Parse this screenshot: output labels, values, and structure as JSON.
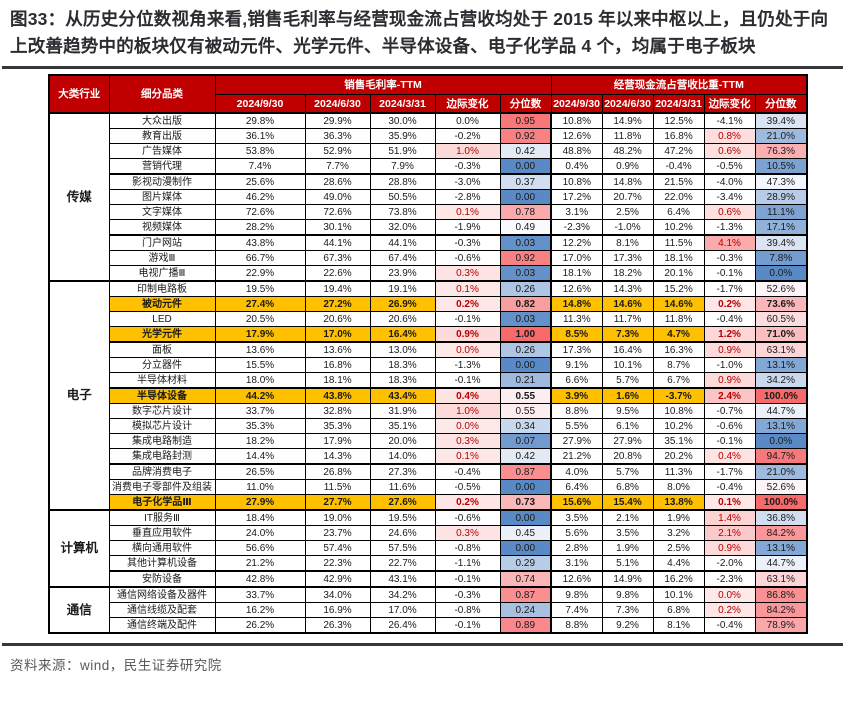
{
  "title": "图33：从历史分位数视角来看,销售毛利率与经营现金流占营收均处于 2015 年以来中枢以上，且仍处于向上改善趋势中的板块仅有被动元件、光学元件、半导体设备、电子化学品 4 个，均属于电子板块",
  "source": "资料来源：wind，民生证券研究院",
  "colors": {
    "header_bg": "#C00000",
    "highlight_bg": "#FFC000",
    "scale_low": "#5A8AC6",
    "scale_mid": "#FCFCFF",
    "scale_high": "#F8696B",
    "change_text": "#b30000",
    "title_text": "#2b2b31",
    "source_text": "#595959"
  },
  "table": {
    "headers": {
      "industry": "大类行业",
      "segment": "细分品类",
      "group1": "销售毛利率-TTM",
      "group2": "经营现金流占营收比重-TTM",
      "dates": [
        "2024/9/30",
        "2024/6/30",
        "2024/3/31"
      ],
      "change": "边际变化",
      "percentile": "分位数"
    },
    "groups": [
      {
        "industry": "传媒",
        "rows": [
          {
            "name": "大众出版",
            "hl": false,
            "sep": false,
            "gm": [
              "29.8%",
              "29.9%",
              "30.0%"
            ],
            "gm_chg": "0.0%",
            "gm_p": 0,
            "gm_pct": "0.95",
            "cf": [
              "10.8%",
              "14.9%",
              "12.5%"
            ],
            "cf_chg": "-4.1%",
            "cf_p": 0,
            "cf_pct": "39.4%"
          },
          {
            "name": "教育出版",
            "hl": false,
            "sep": false,
            "gm": [
              "36.1%",
              "36.3%",
              "35.9%"
            ],
            "gm_chg": "-0.2%",
            "gm_p": 0,
            "gm_pct": "0.92",
            "cf": [
              "12.6%",
              "11.8%",
              "16.8%"
            ],
            "cf_chg": "0.8%",
            "cf_p": 1,
            "cf_pct": "21.0%"
          },
          {
            "name": "广告媒体",
            "hl": false,
            "sep": false,
            "gm": [
              "53.8%",
              "52.9%",
              "51.9%"
            ],
            "gm_chg": "1.0%",
            "gm_p": 1,
            "gm_pct": "0.42",
            "cf": [
              "48.8%",
              "48.2%",
              "47.2%"
            ],
            "cf_chg": "0.6%",
            "cf_p": 1,
            "cf_pct": "76.3%"
          },
          {
            "name": "营销代理",
            "hl": false,
            "sep": false,
            "gm": [
              "7.4%",
              "7.7%",
              "7.9%"
            ],
            "gm_chg": "-0.3%",
            "gm_p": 0,
            "gm_pct": "0.00",
            "cf": [
              "0.4%",
              "0.9%",
              "-0.4%"
            ],
            "cf_chg": "-0.5%",
            "cf_p": 0,
            "cf_pct": "10.5%"
          },
          {
            "name": "影视动漫制作",
            "hl": false,
            "sep": true,
            "gm": [
              "25.6%",
              "28.6%",
              "28.8%"
            ],
            "gm_chg": "-3.0%",
            "gm_p": 0,
            "gm_pct": "0.37",
            "cf": [
              "10.8%",
              "14.8%",
              "21.5%"
            ],
            "cf_chg": "-4.0%",
            "cf_p": 0,
            "cf_pct": "47.3%"
          },
          {
            "name": "图片媒体",
            "hl": false,
            "sep": false,
            "gm": [
              "46.2%",
              "49.0%",
              "50.5%"
            ],
            "gm_chg": "-2.8%",
            "gm_p": 0,
            "gm_pct": "0.00",
            "cf": [
              "17.2%",
              "20.7%",
              "22.0%"
            ],
            "cf_chg": "-3.4%",
            "cf_p": 0,
            "cf_pct": "28.9%"
          },
          {
            "name": "文字媒体",
            "hl": false,
            "sep": false,
            "gm": [
              "72.6%",
              "72.6%",
              "73.8%"
            ],
            "gm_chg": "0.1%",
            "gm_p": 1,
            "gm_pct": "0.78",
            "cf": [
              "3.1%",
              "2.5%",
              "6.4%"
            ],
            "cf_chg": "0.6%",
            "cf_p": 1,
            "cf_pct": "11.1%"
          },
          {
            "name": "视频媒体",
            "hl": false,
            "sep": false,
            "gm": [
              "28.2%",
              "30.1%",
              "32.0%"
            ],
            "gm_chg": "-1.9%",
            "gm_p": 0,
            "gm_pct": "0.49",
            "cf": [
              "-2.3%",
              "-1.0%",
              "10.2%"
            ],
            "cf_chg": "-1.3%",
            "cf_p": 0,
            "cf_pct": "17.1%"
          },
          {
            "name": "门户网站",
            "hl": false,
            "sep": true,
            "gm": [
              "43.8%",
              "44.1%",
              "44.1%"
            ],
            "gm_chg": "-0.3%",
            "gm_p": 0,
            "gm_pct": "0.03",
            "cf": [
              "12.2%",
              "8.1%",
              "11.5%"
            ],
            "cf_chg": "4.1%",
            "cf_p": 1,
            "cf_pct": "39.4%"
          },
          {
            "name": "游戏Ⅲ",
            "hl": false,
            "sep": false,
            "gm": [
              "66.7%",
              "67.3%",
              "67.4%"
            ],
            "gm_chg": "-0.6%",
            "gm_p": 0,
            "gm_pct": "0.92",
            "cf": [
              "17.0%",
              "17.3%",
              "18.1%"
            ],
            "cf_chg": "-0.3%",
            "cf_p": 0,
            "cf_pct": "7.8%"
          },
          {
            "name": "电视广播Ⅲ",
            "hl": false,
            "sep": false,
            "gm": [
              "22.9%",
              "22.6%",
              "23.9%"
            ],
            "gm_chg": "0.3%",
            "gm_p": 1,
            "gm_pct": "0.03",
            "cf": [
              "18.1%",
              "18.2%",
              "20.1%"
            ],
            "cf_chg": "-0.1%",
            "cf_p": 0,
            "cf_pct": "0.0%"
          }
        ]
      },
      {
        "industry": "电子",
        "rows": [
          {
            "name": "印制电路板",
            "hl": false,
            "sep": false,
            "gm": [
              "19.5%",
              "19.4%",
              "19.1%"
            ],
            "gm_chg": "0.1%",
            "gm_p": 1,
            "gm_pct": "0.26",
            "cf": [
              "12.6%",
              "14.3%",
              "15.2%"
            ],
            "cf_chg": "-1.7%",
            "cf_p": 0,
            "cf_pct": "52.6%"
          },
          {
            "name": "被动元件",
            "hl": true,
            "sep": false,
            "gm": [
              "27.4%",
              "27.2%",
              "26.9%"
            ],
            "gm_chg": "0.2%",
            "gm_p": 1,
            "gm_pct": "0.82",
            "cf": [
              "14.8%",
              "14.6%",
              "14.6%"
            ],
            "cf_chg": "0.2%",
            "cf_p": 1,
            "cf_pct": "73.6%"
          },
          {
            "name": "LED",
            "hl": false,
            "sep": false,
            "gm": [
              "20.5%",
              "20.6%",
              "20.6%"
            ],
            "gm_chg": "-0.1%",
            "gm_p": 0,
            "gm_pct": "0.03",
            "cf": [
              "11.3%",
              "11.7%",
              "11.8%"
            ],
            "cf_chg": "-0.4%",
            "cf_p": 0,
            "cf_pct": "60.5%"
          },
          {
            "name": "光学元件",
            "hl": true,
            "sep": false,
            "gm": [
              "17.9%",
              "17.0%",
              "16.4%"
            ],
            "gm_chg": "0.9%",
            "gm_p": 1,
            "gm_pct": "1.00",
            "cf": [
              "8.5%",
              "7.3%",
              "4.7%"
            ],
            "cf_chg": "1.2%",
            "cf_p": 1,
            "cf_pct": "71.0%"
          },
          {
            "name": "面板",
            "hl": false,
            "sep": true,
            "gm": [
              "13.6%",
              "13.6%",
              "13.0%"
            ],
            "gm_chg": "0.0%",
            "gm_p": 1,
            "gm_pct": "0.26",
            "cf": [
              "17.3%",
              "16.4%",
              "16.3%"
            ],
            "cf_chg": "0.9%",
            "cf_p": 1,
            "cf_pct": "63.1%"
          },
          {
            "name": "分立器件",
            "hl": false,
            "sep": false,
            "gm": [
              "15.5%",
              "16.8%",
              "18.3%"
            ],
            "gm_chg": "-1.3%",
            "gm_p": 0,
            "gm_pct": "0.00",
            "cf": [
              "9.1%",
              "10.1%",
              "8.7%"
            ],
            "cf_chg": "-1.0%",
            "cf_p": 0,
            "cf_pct": "13.1%"
          },
          {
            "name": "半导体材料",
            "hl": false,
            "sep": false,
            "gm": [
              "18.0%",
              "18.1%",
              "18.3%"
            ],
            "gm_chg": "-0.1%",
            "gm_p": 0,
            "gm_pct": "0.21",
            "cf": [
              "6.6%",
              "5.7%",
              "6.7%"
            ],
            "cf_chg": "0.9%",
            "cf_p": 1,
            "cf_pct": "34.2%"
          },
          {
            "name": "半导体设备",
            "hl": true,
            "sep": true,
            "gm": [
              "44.2%",
              "43.8%",
              "43.4%"
            ],
            "gm_chg": "0.4%",
            "gm_p": 1,
            "gm_pct": "0.55",
            "cf": [
              "3.9%",
              "1.6%",
              "-3.7%"
            ],
            "cf_chg": "2.4%",
            "cf_p": 1,
            "cf_pct": "100.0%"
          },
          {
            "name": "数字芯片设计",
            "hl": false,
            "sep": false,
            "gm": [
              "33.7%",
              "32.8%",
              "31.9%"
            ],
            "gm_chg": "1.0%",
            "gm_p": 1,
            "gm_pct": "0.55",
            "cf": [
              "8.8%",
              "9.5%",
              "10.8%"
            ],
            "cf_chg": "-0.7%",
            "cf_p": 0,
            "cf_pct": "44.7%"
          },
          {
            "name": "模拟芯片设计",
            "hl": false,
            "sep": false,
            "gm": [
              "35.3%",
              "35.3%",
              "35.1%"
            ],
            "gm_chg": "0.0%",
            "gm_p": 1,
            "gm_pct": "0.34",
            "cf": [
              "5.5%",
              "6.1%",
              "10.2%"
            ],
            "cf_chg": "-0.6%",
            "cf_p": 0,
            "cf_pct": "13.1%"
          },
          {
            "name": "集成电路制造",
            "hl": false,
            "sep": false,
            "gm": [
              "18.2%",
              "17.9%",
              "20.0%"
            ],
            "gm_chg": "0.3%",
            "gm_p": 1,
            "gm_pct": "0.07",
            "cf": [
              "27.9%",
              "27.9%",
              "35.1%"
            ],
            "cf_chg": "-0.1%",
            "cf_p": 0,
            "cf_pct": "0.0%"
          },
          {
            "name": "集成电路封测",
            "hl": false,
            "sep": false,
            "gm": [
              "14.4%",
              "14.3%",
              "14.0%"
            ],
            "gm_chg": "0.1%",
            "gm_p": 1,
            "gm_pct": "0.42",
            "cf": [
              "21.2%",
              "20.8%",
              "20.2%"
            ],
            "cf_chg": "0.4%",
            "cf_p": 1,
            "cf_pct": "94.7%"
          },
          {
            "name": "品牌消费电子",
            "hl": false,
            "sep": true,
            "gm": [
              "26.5%",
              "26.8%",
              "27.3%"
            ],
            "gm_chg": "-0.4%",
            "gm_p": 0,
            "gm_pct": "0.87",
            "cf": [
              "4.0%",
              "5.7%",
              "11.3%"
            ],
            "cf_chg": "-1.7%",
            "cf_p": 0,
            "cf_pct": "21.0%"
          },
          {
            "name": "消费电子零部件及组装",
            "hl": false,
            "sep": false,
            "gm": [
              "11.0%",
              "11.5%",
              "11.6%"
            ],
            "gm_chg": "-0.5%",
            "gm_p": 0,
            "gm_pct": "0.00",
            "cf": [
              "6.4%",
              "6.8%",
              "8.0%"
            ],
            "cf_chg": "-0.4%",
            "cf_p": 0,
            "cf_pct": "52.6%"
          },
          {
            "name": "电子化学品Ⅲ",
            "hl": true,
            "sep": false,
            "gm": [
              "27.9%",
              "27.7%",
              "27.6%"
            ],
            "gm_chg": "0.2%",
            "gm_p": 1,
            "gm_pct": "0.73",
            "cf": [
              "15.6%",
              "15.4%",
              "13.8%"
            ],
            "cf_chg": "0.1%",
            "cf_p": 1,
            "cf_pct": "100.0%"
          }
        ]
      },
      {
        "industry": "计算机",
        "rows": [
          {
            "name": "IT服务Ⅲ",
            "hl": false,
            "sep": false,
            "gm": [
              "18.4%",
              "19.0%",
              "19.5%"
            ],
            "gm_chg": "-0.6%",
            "gm_p": 0,
            "gm_pct": "0.00",
            "cf": [
              "3.5%",
              "2.1%",
              "1.9%"
            ],
            "cf_chg": "1.4%",
            "cf_p": 1,
            "cf_pct": "36.8%"
          },
          {
            "name": "垂直应用软件",
            "hl": false,
            "sep": false,
            "gm": [
              "24.0%",
              "23.7%",
              "24.6%"
            ],
            "gm_chg": "0.3%",
            "gm_p": 1,
            "gm_pct": "0.45",
            "cf": [
              "5.6%",
              "3.5%",
              "3.2%"
            ],
            "cf_chg": "2.1%",
            "cf_p": 1,
            "cf_pct": "84.2%"
          },
          {
            "name": "横向通用软件",
            "hl": false,
            "sep": false,
            "gm": [
              "56.6%",
              "57.4%",
              "57.5%"
            ],
            "gm_chg": "-0.8%",
            "gm_p": 0,
            "gm_pct": "0.00",
            "cf": [
              "2.8%",
              "1.9%",
              "2.5%"
            ],
            "cf_chg": "0.9%",
            "cf_p": 1,
            "cf_pct": "13.1%"
          },
          {
            "name": "其他计算机设备",
            "hl": false,
            "sep": false,
            "gm": [
              "21.2%",
              "22.3%",
              "22.7%"
            ],
            "gm_chg": "-1.1%",
            "gm_p": 0,
            "gm_pct": "0.29",
            "cf": [
              "3.1%",
              "5.1%",
              "4.4%"
            ],
            "cf_chg": "-2.0%",
            "cf_p": 0,
            "cf_pct": "44.7%"
          },
          {
            "name": "安防设备",
            "hl": false,
            "sep": true,
            "gm": [
              "42.8%",
              "42.9%",
              "43.1%"
            ],
            "gm_chg": "-0.1%",
            "gm_p": 0,
            "gm_pct": "0.74",
            "cf": [
              "12.6%",
              "14.9%",
              "16.2%"
            ],
            "cf_chg": "-2.3%",
            "cf_p": 0,
            "cf_pct": "63.1%"
          }
        ]
      },
      {
        "industry": "通信",
        "rows": [
          {
            "name": "通信网络设备及器件",
            "hl": false,
            "sep": false,
            "gm": [
              "33.7%",
              "34.0%",
              "34.2%"
            ],
            "gm_chg": "-0.3%",
            "gm_p": 0,
            "gm_pct": "0.87",
            "cf": [
              "9.8%",
              "9.8%",
              "10.1%"
            ],
            "cf_chg": "0.0%",
            "cf_p": 1,
            "cf_pct": "86.8%"
          },
          {
            "name": "通信线缆及配套",
            "hl": false,
            "sep": false,
            "gm": [
              "16.2%",
              "16.9%",
              "17.0%"
            ],
            "gm_chg": "-0.8%",
            "gm_p": 0,
            "gm_pct": "0.24",
            "cf": [
              "7.4%",
              "7.3%",
              "6.8%"
            ],
            "cf_chg": "0.2%",
            "cf_p": 1,
            "cf_pct": "84.2%"
          },
          {
            "name": "通信终端及配件",
            "hl": false,
            "sep": false,
            "gm": [
              "26.2%",
              "26.3%",
              "26.4%"
            ],
            "gm_chg": "-0.1%",
            "gm_p": 0,
            "gm_pct": "0.89",
            "cf": [
              "8.8%",
              "9.2%",
              "8.1%"
            ],
            "cf_chg": "-0.4%",
            "cf_p": 0,
            "cf_pct": "78.9%"
          }
        ]
      }
    ]
  }
}
